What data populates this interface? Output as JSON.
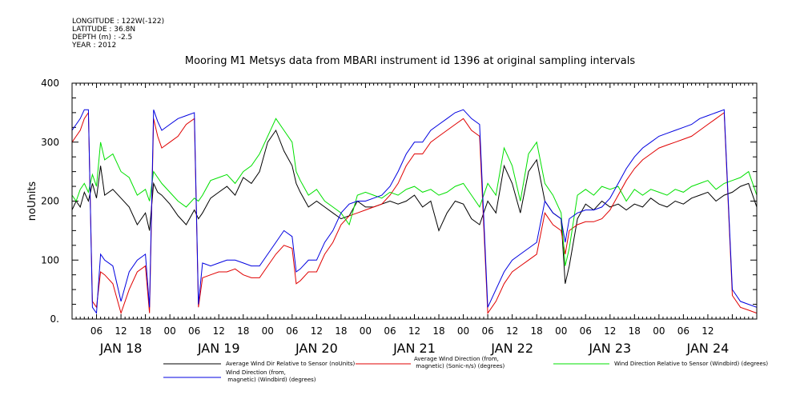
{
  "header": {
    "longitude": "LONGITUDE : 122W(-122)",
    "latitude": "LATITUDE : 36.8N",
    "depth": "DEPTH (m) : -2.5",
    "year": "YEAR : 2012"
  },
  "colors": {
    "black": "#000000",
    "red": "#e00000",
    "green": "#00e000",
    "blue": "#0000e0"
  },
  "chart_data": {
    "type": "line",
    "title": "Mooring M1 Metsys data from MBARI instrument id 1396 at original sampling intervals",
    "ylabel": "noUnits",
    "xlabel": "",
    "ylim": [
      0,
      400
    ],
    "yticks": [
      0,
      100,
      200,
      300,
      400
    ],
    "xlim": [
      0,
      168
    ],
    "hour_ticks": [
      {
        "t": 6,
        "label": "06"
      },
      {
        "t": 12,
        "label": "12"
      },
      {
        "t": 18,
        "label": "18"
      },
      {
        "t": 24,
        "label": "00"
      },
      {
        "t": 30,
        "label": "06"
      },
      {
        "t": 36,
        "label": "12"
      },
      {
        "t": 42,
        "label": "18"
      },
      {
        "t": 48,
        "label": "00"
      },
      {
        "t": 54,
        "label": "06"
      },
      {
        "t": 60,
        "label": "12"
      },
      {
        "t": 66,
        "label": "18"
      },
      {
        "t": 72,
        "label": "00"
      },
      {
        "t": 78,
        "label": "06"
      },
      {
        "t": 84,
        "label": "12"
      },
      {
        "t": 90,
        "label": "18"
      },
      {
        "t": 96,
        "label": "00"
      },
      {
        "t": 102,
        "label": "06"
      },
      {
        "t": 108,
        "label": "12"
      },
      {
        "t": 114,
        "label": "18"
      },
      {
        "t": 120,
        "label": "00"
      },
      {
        "t": 126,
        "label": "06"
      },
      {
        "t": 132,
        "label": "12"
      },
      {
        "t": 138,
        "label": "18"
      },
      {
        "t": 144,
        "label": "00"
      },
      {
        "t": 150,
        "label": "06"
      },
      {
        "t": 156,
        "label": "12"
      }
    ],
    "day_labels": [
      {
        "t": 12,
        "label": "JAN 18"
      },
      {
        "t": 36,
        "label": "JAN 19"
      },
      {
        "t": 60,
        "label": "JAN 20"
      },
      {
        "t": 84,
        "label": "JAN 21"
      },
      {
        "t": 108,
        "label": "JAN 22"
      },
      {
        "t": 132,
        "label": "JAN 23"
      },
      {
        "t": 156,
        "label": "JAN 24"
      }
    ],
    "series": [
      {
        "name": "Average Wind Dir Relative to Sensor (noUnits)",
        "color": "black",
        "x": [
          0,
          1,
          2,
          3,
          4,
          5,
          6,
          7,
          8,
          10,
          12,
          14,
          16,
          18,
          19,
          20,
          21,
          22,
          24,
          26,
          28,
          30,
          31,
          32,
          34,
          36,
          38,
          40,
          42,
          44,
          46,
          48,
          50,
          52,
          54,
          55,
          56,
          58,
          60,
          62,
          64,
          66,
          68,
          70,
          72,
          74,
          76,
          78,
          80,
          82,
          84,
          86,
          88,
          90,
          92,
          94,
          96,
          98,
          100,
          102,
          104,
          106,
          108,
          110,
          112,
          114,
          116,
          118,
          120,
          121,
          122,
          124,
          126,
          128,
          130,
          132,
          134,
          136,
          138,
          140,
          142,
          144,
          146,
          148,
          150,
          152,
          154,
          156,
          158,
          160,
          162,
          164,
          166,
          168
        ],
        "y": [
          185,
          200,
          190,
          215,
          200,
          230,
          205,
          260,
          210,
          220,
          205,
          190,
          160,
          180,
          150,
          230,
          215,
          210,
          195,
          175,
          160,
          185,
          170,
          180,
          205,
          215,
          225,
          210,
          240,
          230,
          250,
          300,
          320,
          285,
          260,
          230,
          215,
          190,
          200,
          190,
          180,
          170,
          175,
          200,
          190,
          190,
          195,
          200,
          195,
          200,
          210,
          190,
          200,
          150,
          180,
          200,
          195,
          170,
          160,
          200,
          180,
          260,
          230,
          180,
          250,
          270,
          200,
          180,
          170,
          60,
          90,
          170,
          195,
          185,
          200,
          190,
          195,
          185,
          195,
          190,
          205,
          195,
          190,
          200,
          195,
          205,
          210,
          215,
          200,
          210,
          215,
          225,
          230,
          190
        ]
      },
      {
        "name": "Average Wind Direction (from, magnetic) (Sonic-n/s) (degrees)",
        "color": "red",
        "x": [
          0,
          1,
          2,
          3,
          4,
          5,
          6,
          7,
          8,
          10,
          12,
          14,
          16,
          18,
          19,
          20,
          21,
          22,
          24,
          26,
          28,
          30,
          31,
          32,
          34,
          36,
          38,
          40,
          42,
          44,
          46,
          48,
          50,
          52,
          54,
          55,
          56,
          58,
          60,
          62,
          64,
          66,
          68,
          70,
          72,
          74,
          76,
          78,
          80,
          82,
          84,
          86,
          88,
          90,
          92,
          94,
          96,
          98,
          100,
          102,
          104,
          106,
          108,
          110,
          112,
          114,
          116,
          118,
          120,
          121,
          122,
          124,
          126,
          128,
          130,
          132,
          134,
          136,
          138,
          140,
          142,
          144,
          146,
          148,
          150,
          152,
          154,
          156,
          158,
          160,
          162,
          164,
          166,
          168
        ],
        "y": [
          300,
          310,
          320,
          340,
          350,
          30,
          20,
          80,
          75,
          60,
          10,
          50,
          80,
          90,
          10,
          340,
          310,
          290,
          300,
          310,
          330,
          340,
          20,
          70,
          75,
          80,
          80,
          85,
          75,
          70,
          70,
          90,
          110,
          125,
          120,
          60,
          65,
          80,
          80,
          110,
          130,
          160,
          175,
          180,
          185,
          190,
          195,
          210,
          230,
          260,
          280,
          280,
          300,
          310,
          320,
          330,
          340,
          320,
          310,
          10,
          30,
          60,
          80,
          90,
          100,
          110,
          180,
          160,
          150,
          110,
          150,
          160,
          165,
          165,
          170,
          185,
          210,
          235,
          255,
          270,
          280,
          290,
          295,
          300,
          305,
          310,
          320,
          330,
          340,
          350,
          40,
          20,
          15,
          10
        ]
      },
      {
        "name": "Wind Direction Relative to Sensor (Windbird) (degrees)",
        "color": "green",
        "x": [
          0,
          1,
          2,
          3,
          4,
          5,
          6,
          7,
          8,
          10,
          12,
          14,
          16,
          18,
          19,
          20,
          21,
          22,
          24,
          26,
          28,
          30,
          31,
          32,
          34,
          36,
          38,
          40,
          42,
          44,
          46,
          48,
          50,
          52,
          54,
          55,
          56,
          58,
          60,
          62,
          64,
          66,
          68,
          70,
          72,
          74,
          76,
          78,
          80,
          82,
          84,
          86,
          88,
          90,
          92,
          94,
          96,
          98,
          100,
          102,
          104,
          106,
          108,
          110,
          112,
          114,
          116,
          118,
          120,
          121,
          122,
          124,
          126,
          128,
          130,
          132,
          134,
          136,
          138,
          140,
          142,
          144,
          146,
          148,
          150,
          152,
          154,
          156,
          158,
          160,
          162,
          164,
          166,
          168
        ],
        "y": [
          210,
          200,
          220,
          230,
          215,
          245,
          225,
          300,
          270,
          280,
          250,
          240,
          210,
          220,
          200,
          250,
          240,
          230,
          215,
          200,
          190,
          205,
          200,
          210,
          235,
          240,
          245,
          230,
          250,
          260,
          280,
          310,
          340,
          320,
          300,
          250,
          235,
          210,
          220,
          200,
          190,
          180,
          160,
          210,
          215,
          210,
          205,
          215,
          210,
          220,
          225,
          215,
          220,
          210,
          215,
          225,
          230,
          210,
          190,
          230,
          210,
          290,
          260,
          200,
          280,
          300,
          230,
          210,
          180,
          90,
          120,
          210,
          220,
          210,
          225,
          220,
          225,
          200,
          220,
          210,
          220,
          215,
          210,
          220,
          215,
          225,
          230,
          235,
          220,
          230,
          235,
          240,
          250,
          210
        ]
      },
      {
        "name": "Wind Direction (from, magnetic) (Windbird) (degrees)",
        "color": "blue",
        "x": [
          0,
          1,
          2,
          3,
          4,
          5,
          6,
          7,
          8,
          10,
          12,
          14,
          16,
          18,
          19,
          20,
          21,
          22,
          24,
          26,
          28,
          30,
          31,
          32,
          34,
          36,
          38,
          40,
          42,
          44,
          46,
          48,
          50,
          52,
          54,
          55,
          56,
          58,
          60,
          62,
          64,
          66,
          68,
          70,
          72,
          74,
          76,
          78,
          80,
          82,
          84,
          86,
          88,
          90,
          92,
          94,
          96,
          98,
          100,
          102,
          104,
          106,
          108,
          110,
          112,
          114,
          116,
          118,
          120,
          121,
          122,
          124,
          126,
          128,
          130,
          132,
          134,
          136,
          138,
          140,
          142,
          144,
          146,
          148,
          150,
          152,
          154,
          156,
          158,
          160,
          162,
          164,
          166,
          168
        ],
        "y": [
          320,
          330,
          340,
          355,
          355,
          20,
          10,
          110,
          100,
          90,
          30,
          80,
          100,
          110,
          20,
          355,
          335,
          320,
          330,
          340,
          345,
          350,
          25,
          95,
          90,
          95,
          100,
          100,
          95,
          90,
          90,
          110,
          130,
          150,
          140,
          80,
          85,
          100,
          100,
          130,
          150,
          180,
          195,
          200,
          200,
          205,
          210,
          225,
          250,
          280,
          300,
          300,
          320,
          330,
          340,
          350,
          355,
          340,
          330,
          20,
          50,
          80,
          100,
          110,
          120,
          130,
          200,
          180,
          170,
          130,
          170,
          180,
          185,
          185,
          190,
          205,
          230,
          255,
          275,
          290,
          300,
          310,
          315,
          320,
          325,
          330,
          340,
          345,
          350,
          355,
          50,
          30,
          25,
          20
        ]
      }
    ],
    "legend": [
      {
        "label": "Average Wind Dir Relative to Sensor (noUnits)",
        "color": "black"
      },
      {
        "label": "Average Wind Direction (from,\n  magnetic) (Sonic-n/s) (degrees)",
        "color": "red"
      },
      {
        "label": "Wind Direction Relative to Sensor (Windbird) (degrees)",
        "color": "green"
      },
      {
        "label": "Wind Direction (from,\n  magnetic) (Windbird) (degrees)",
        "color": "blue"
      }
    ]
  }
}
